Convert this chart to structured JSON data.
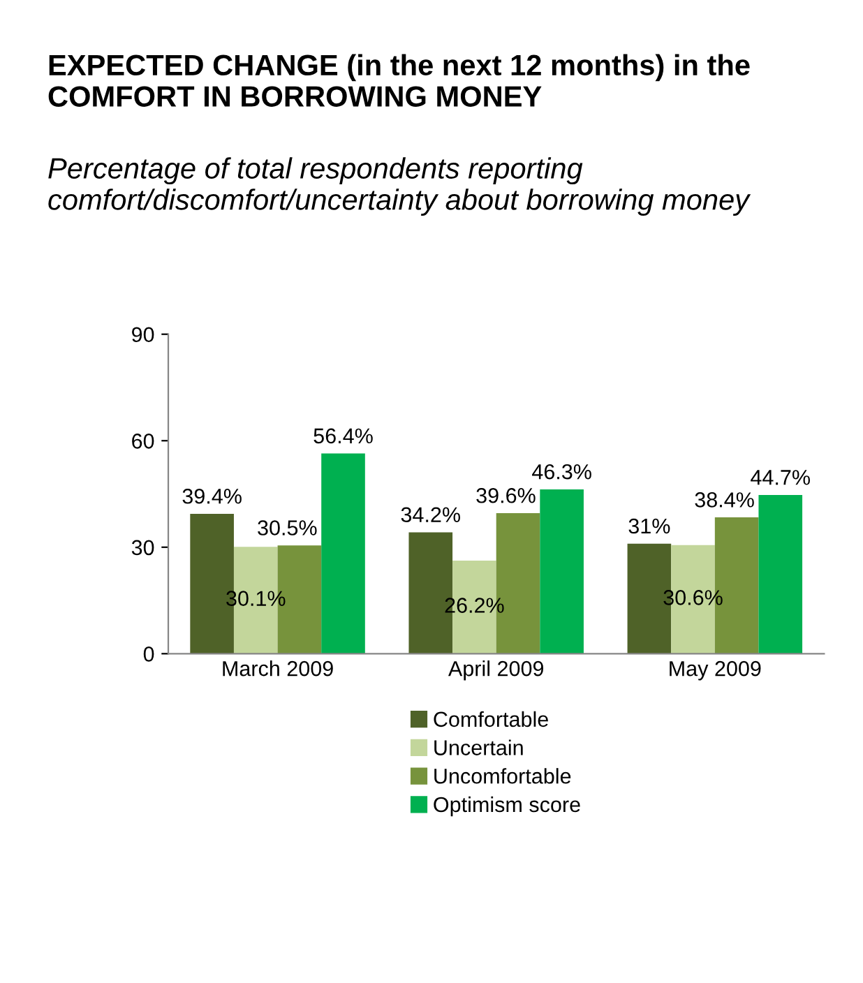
{
  "chart_data": {
    "type": "bar",
    "title": "EXPECTED CHANGE (in the next 12 months) in the COMFORT IN BORROWING MONEY",
    "subtitle": "Percentage of total respondents reporting comfort/discomfort/uncertainty about borrowing money",
    "categories": [
      "March 2009",
      "April 2009",
      "May 2009"
    ],
    "series": [
      {
        "name": "Comfortable",
        "color": "#4f6228",
        "values": [
          39.4,
          34.2,
          31
        ],
        "value_labels": [
          "39.4%",
          "34.2%",
          "31%"
        ]
      },
      {
        "name": "Uncertain",
        "color": "#c3d69b",
        "values": [
          30.1,
          26.2,
          30.6
        ],
        "value_labels": [
          "30.1%",
          "26.2%",
          "30.6%"
        ]
      },
      {
        "name": "Uncomfortable",
        "color": "#77933c",
        "values": [
          30.5,
          39.6,
          38.4
        ],
        "value_labels": [
          "30.5%",
          "39.6%",
          "38.4%"
        ]
      },
      {
        "name": "Optimism score",
        "color": "#00b050",
        "values": [
          56.4,
          46.3,
          44.7
        ],
        "value_labels": [
          "56.4%",
          "46.3%",
          "44.7%"
        ]
      }
    ],
    "ylim": [
      0,
      90
    ],
    "yticks": [
      0,
      30,
      60,
      90
    ],
    "grid": false,
    "legend": "bottom"
  }
}
